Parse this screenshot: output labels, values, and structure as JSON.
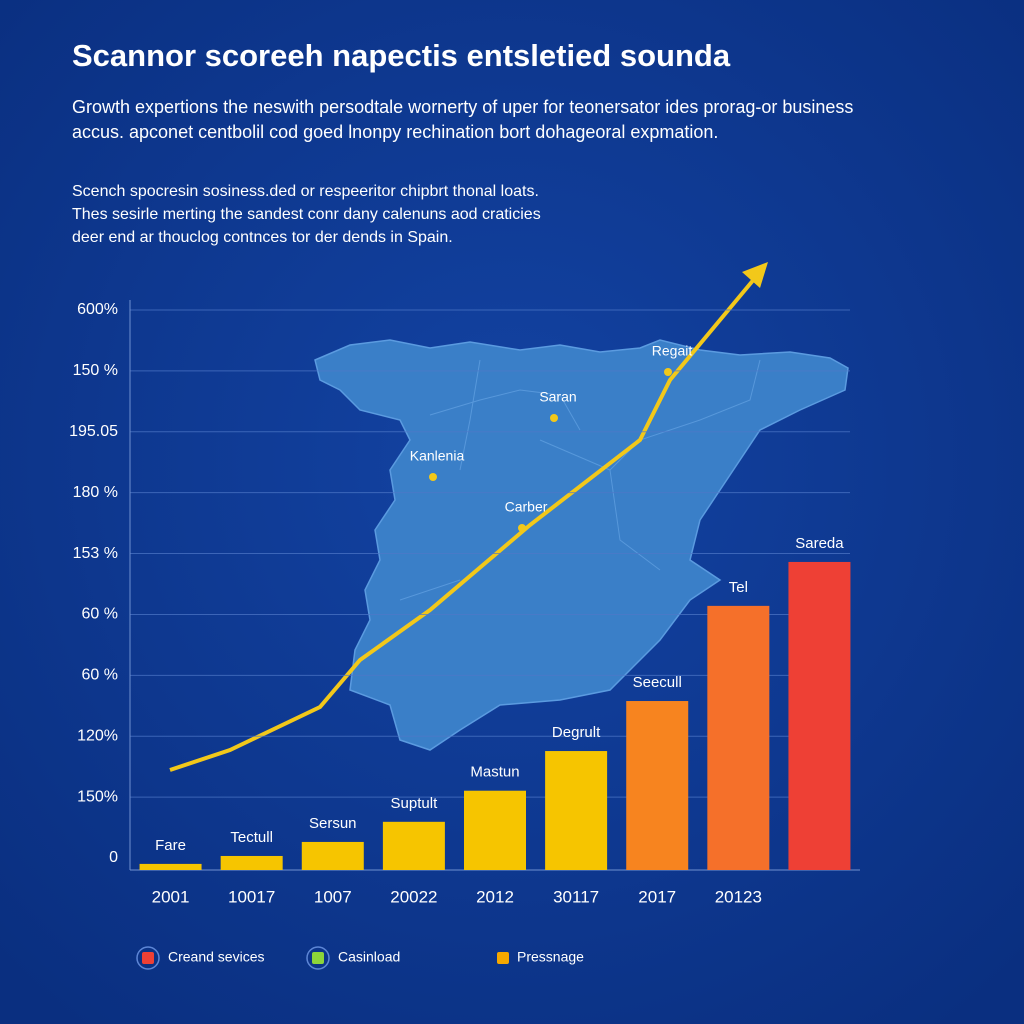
{
  "chart_data": {
    "type": "bar",
    "title": "Scannor scoreeh napectis entsletied sounda",
    "subtitle_lines": [
      "Growth expertions the neswith persodtale wornerty of uper for teonersator ides prorag-or business",
      "accus. apconet centbolil cod goed lnonpy rechination bort dohageoral expmation."
    ],
    "text_lines": [
      "Scench spocresin sosiness.ded or respeeritor chipbrt thonal loats.",
      "Thes sesirle merting the sandest conr dany calenuns aod craticies",
      "deer end ar thouclog contnces tor der dends in Spain."
    ],
    "y_axis_labels": [
      "600%",
      "150 %",
      "195.05",
      "180 %",
      "153 %",
      "60 %",
      "60 %",
      "120%",
      "150%",
      "0"
    ],
    "categories": [
      "2001",
      "10017",
      "1007",
      "20022",
      "2012",
      "30117",
      "2017",
      "20123",
      null
    ],
    "bar_labels": [
      "Fare",
      "Tectull",
      "Sersun",
      "Suptult",
      "Mastun",
      "Degrult",
      "Seecull",
      "Tel",
      "Sareda"
    ],
    "values": [
      0.1,
      0.23,
      0.46,
      0.79,
      1.3,
      1.95,
      2.77,
      4.33,
      5.05
    ],
    "colors": [
      "#f6c500",
      "#f6c500",
      "#f6c500",
      "#f6c500",
      "#f6c500",
      "#f6c500",
      "#f7841f",
      "#f5702a",
      "#ee4035"
    ],
    "ylim": [
      0,
      10
    ],
    "map_labels": [
      "Regait",
      "Saran",
      "Kanlenia",
      "Carber"
    ],
    "legend": [
      {
        "name": "Creand sevices",
        "color": "#ee4035"
      },
      {
        "name": "Casinload",
        "color": "#8cd43a"
      },
      {
        "name": "Pressnage",
        "color": "#f6a800"
      }
    ]
  }
}
